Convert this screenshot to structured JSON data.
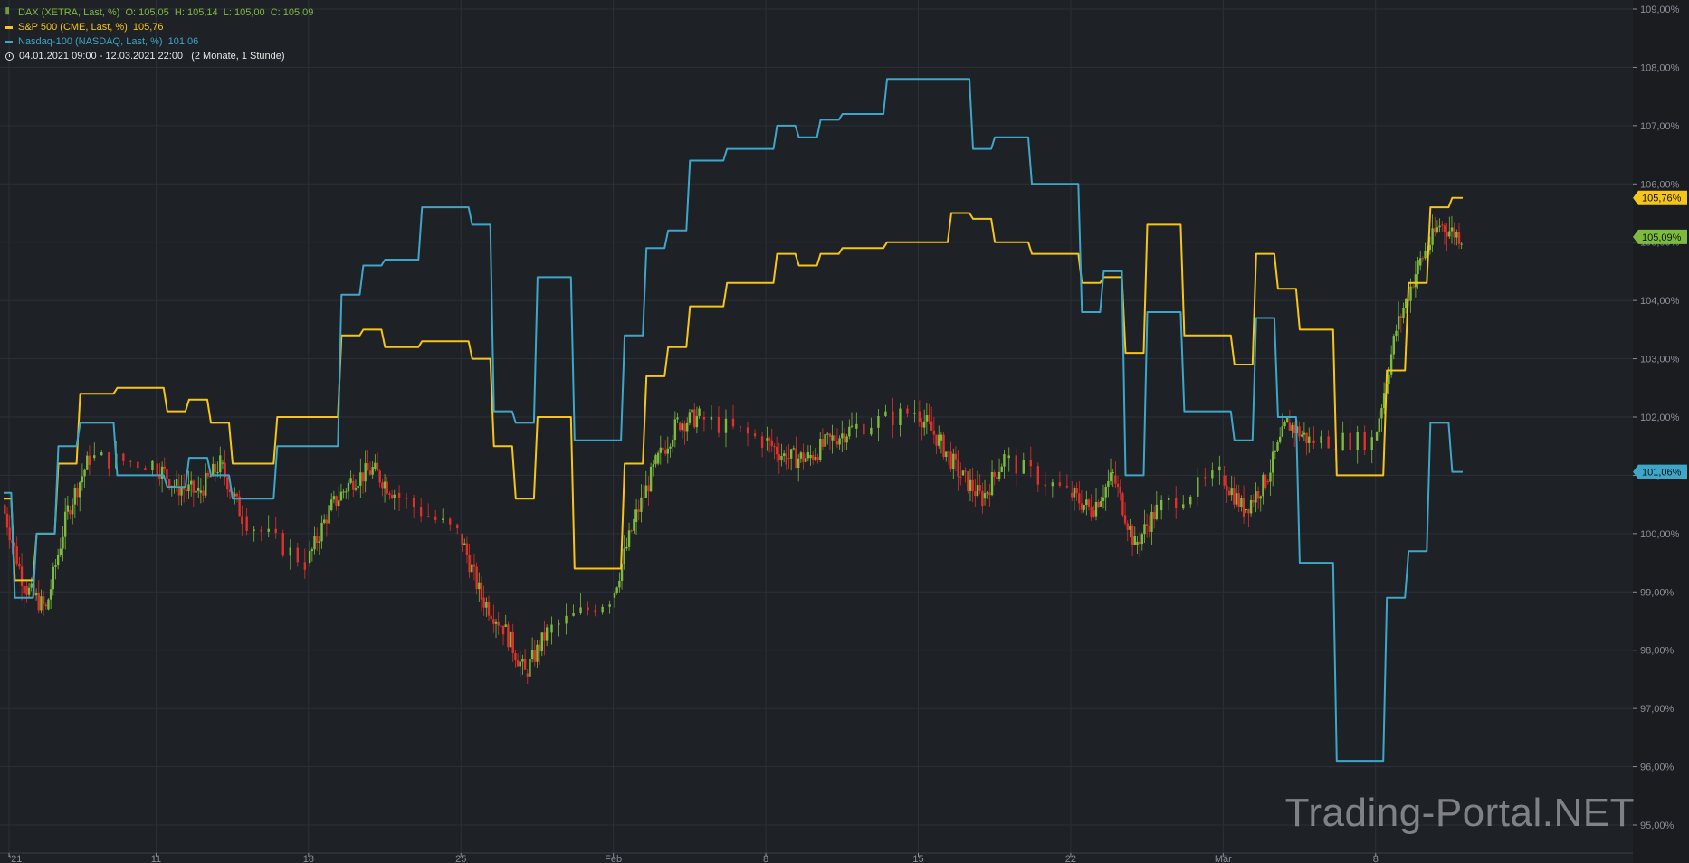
{
  "legend": {
    "dax": {
      "name": "DAX (XETRA, Last, %)",
      "ohlc": "O: 105,05  H: 105,14  L: 105,00  C: 105,09",
      "color": "#7dbb3d"
    },
    "sp500": {
      "name": "S&P 500 (CME, Last, %)",
      "value": "105,76",
      "color": "#f5c518"
    },
    "nasdaq": {
      "name": "Nasdaq-100 (NASDAQ, Last, %)",
      "value": "101,06",
      "color": "#3ea6c8"
    },
    "range": "04.01.2021 09:00 - 12.03.2021 22:00   (2 Monate, 1 Stunde)"
  },
  "watermark": "Trading-Portal.NET",
  "colors": {
    "background": "#1e2126",
    "grid": "#2c3038",
    "axis_text": "#8a8f98",
    "up": "#7dbb3d",
    "down": "#e0302a"
  },
  "chart_data": {
    "type": "line",
    "title": "",
    "y_unit": "%",
    "ylim": [
      94.8,
      109.1
    ],
    "y_ticks": [
      "95,00%",
      "96,00%",
      "97,00%",
      "98,00%",
      "99,00%",
      "100,00%",
      "101,00%",
      "102,00%",
      "103,00%",
      "104,00%",
      "105,00%",
      "106,00%",
      "107,00%",
      "108,00%",
      "109,00%"
    ],
    "x_ticks": [
      "'21",
      "11",
      "18",
      "25",
      "Feb",
      "8",
      "15",
      "22",
      "Mär",
      "8"
    ],
    "x_range": [
      "2021-01-04",
      "2021-03-12"
    ],
    "grid": true,
    "last_value_labels": [
      {
        "series": "S&P 500 (CME, Last, %)",
        "text": "105,76%"
      },
      {
        "series": "DAX (XETRA, Last, %)",
        "text": "105,09%"
      },
      {
        "series": "Nasdaq-100 (NASDAQ, Last, %)",
        "text": "101,06%"
      }
    ],
    "series": [
      {
        "name": "S&P 500 (CME, Last, %)",
        "color": "#f5c518",
        "x": [
          "2021-01-04",
          "2021-01-05",
          "2021-01-06",
          "2021-01-07",
          "2021-01-08",
          "2021-01-11",
          "2021-01-12",
          "2021-01-13",
          "2021-01-14",
          "2021-01-15",
          "2021-01-19",
          "2021-01-20",
          "2021-01-21",
          "2021-01-22",
          "2021-01-25",
          "2021-01-26",
          "2021-01-27",
          "2021-01-28",
          "2021-01-29",
          "2021-02-01",
          "2021-02-02",
          "2021-02-03",
          "2021-02-04",
          "2021-02-05",
          "2021-02-08",
          "2021-02-09",
          "2021-02-10",
          "2021-02-11",
          "2021-02-12",
          "2021-02-16",
          "2021-02-17",
          "2021-02-18",
          "2021-02-19",
          "2021-02-22",
          "2021-02-23",
          "2021-02-24",
          "2021-02-25",
          "2021-02-26",
          "2021-03-01",
          "2021-03-02",
          "2021-03-03",
          "2021-03-04",
          "2021-03-05",
          "2021-03-08",
          "2021-03-09",
          "2021-03-10",
          "2021-03-11",
          "2021-03-12"
        ],
        "values": [
          100.6,
          99.2,
          100.0,
          101.2,
          102.4,
          102.5,
          102.1,
          102.3,
          101.9,
          101.2,
          102.0,
          103.4,
          103.5,
          103.2,
          103.3,
          103.0,
          101.5,
          100.6,
          102.0,
          99.4,
          101.2,
          102.7,
          103.2,
          103.9,
          104.3,
          104.8,
          104.6,
          104.8,
          104.9,
          105.0,
          105.5,
          105.4,
          105.0,
          104.8,
          104.3,
          104.4,
          103.1,
          105.3,
          103.4,
          102.9,
          104.8,
          104.2,
          103.5,
          101.0,
          102.8,
          104.3,
          105.6,
          105.76
        ]
      },
      {
        "name": "Nasdaq-100 (NASDAQ, Last, %)",
        "color": "#3ea6c8",
        "x": [
          "2021-01-04",
          "2021-01-05",
          "2021-01-06",
          "2021-01-07",
          "2021-01-08",
          "2021-01-11",
          "2021-01-12",
          "2021-01-13",
          "2021-01-14",
          "2021-01-15",
          "2021-01-19",
          "2021-01-20",
          "2021-01-21",
          "2021-01-22",
          "2021-01-25",
          "2021-01-26",
          "2021-01-27",
          "2021-01-28",
          "2021-01-29",
          "2021-02-01",
          "2021-02-02",
          "2021-02-03",
          "2021-02-04",
          "2021-02-05",
          "2021-02-08",
          "2021-02-09",
          "2021-02-10",
          "2021-02-11",
          "2021-02-12",
          "2021-02-16",
          "2021-02-17",
          "2021-02-18",
          "2021-02-19",
          "2021-02-22",
          "2021-02-23",
          "2021-02-24",
          "2021-02-25",
          "2021-02-26",
          "2021-03-01",
          "2021-03-02",
          "2021-03-03",
          "2021-03-04",
          "2021-03-05",
          "2021-03-08",
          "2021-03-09",
          "2021-03-10",
          "2021-03-11",
          "2021-03-12"
        ],
        "values": [
          100.7,
          98.9,
          100.0,
          101.5,
          101.9,
          101.0,
          100.8,
          101.3,
          101.0,
          100.6,
          101.5,
          104.1,
          104.6,
          104.7,
          105.6,
          105.3,
          102.1,
          101.9,
          104.4,
          101.6,
          103.4,
          104.9,
          105.2,
          106.4,
          106.6,
          107.0,
          106.8,
          107.1,
          107.2,
          107.8,
          107.8,
          106.6,
          106.8,
          106.0,
          103.8,
          104.5,
          101.0,
          103.8,
          102.1,
          101.6,
          103.7,
          102.0,
          99.5,
          96.1,
          98.9,
          99.7,
          101.9,
          101.06
        ]
      },
      {
        "name": "DAX (XETRA, Last, %)",
        "color": "#7dbb3d",
        "x": [
          "2021-01-04",
          "2021-01-05",
          "2021-01-06",
          "2021-01-07",
          "2021-01-08",
          "2021-01-11",
          "2021-01-12",
          "2021-01-13",
          "2021-01-14",
          "2021-01-15",
          "2021-01-18",
          "2021-01-19",
          "2021-01-20",
          "2021-01-21",
          "2021-01-22",
          "2021-01-25",
          "2021-01-26",
          "2021-01-27",
          "2021-01-28",
          "2021-01-29",
          "2021-02-01",
          "2021-02-02",
          "2021-02-03",
          "2021-02-04",
          "2021-02-05",
          "2021-02-08",
          "2021-02-09",
          "2021-02-10",
          "2021-02-11",
          "2021-02-12",
          "2021-02-15",
          "2021-02-16",
          "2021-02-17",
          "2021-02-18",
          "2021-02-19",
          "2021-02-22",
          "2021-02-23",
          "2021-02-24",
          "2021-02-25",
          "2021-02-26",
          "2021-03-01",
          "2021-03-02",
          "2021-03-03",
          "2021-03-04",
          "2021-03-05",
          "2021-03-08",
          "2021-03-09",
          "2021-03-10",
          "2021-03-11",
          "2021-03-12"
        ],
        "values": [
          100.5,
          99.1,
          98.7,
          100.4,
          101.3,
          101.2,
          100.8,
          100.7,
          101.2,
          100.3,
          99.5,
          100.4,
          100.9,
          101.1,
          100.7,
          100.0,
          98.9,
          98.4,
          97.6,
          98.3,
          98.9,
          100.2,
          101.2,
          101.9,
          102.0,
          101.6,
          101.3,
          101.3,
          101.6,
          101.8,
          102.1,
          101.6,
          101.0,
          100.6,
          101.3,
          100.7,
          100.4,
          101.0,
          99.8,
          100.4,
          101.0,
          100.4,
          100.9,
          101.9,
          101.6,
          101.6,
          103.5,
          104.6,
          105.3,
          105.09
        ]
      }
    ]
  }
}
